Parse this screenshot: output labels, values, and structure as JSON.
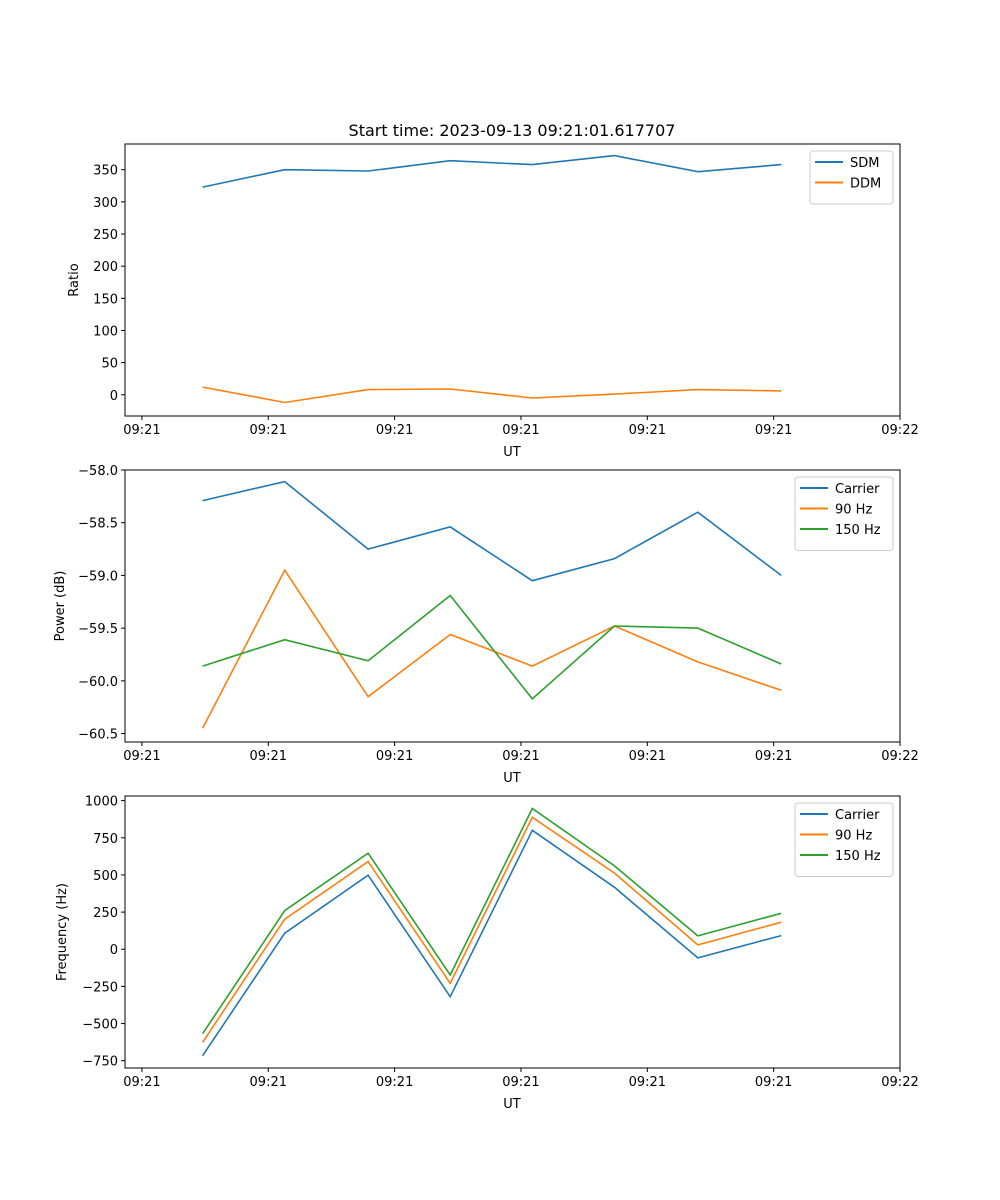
{
  "title": "Start time: 2023-09-13 09:21:01.617707",
  "chart_data": [
    {
      "type": "line",
      "title": "Start time: 2023-09-13 09:21:01.617707",
      "xlabel": "UT",
      "ylabel": "Ratio",
      "xlim": [
        -0.134,
        6
      ],
      "xticks": [
        0,
        1,
        2,
        3,
        4,
        5,
        6
      ],
      "xtick_labels": [
        "09:21",
        "09:21",
        "09:21",
        "09:21",
        "09:21",
        "09:21",
        "09:22"
      ],
      "ylim": [
        -33,
        390
      ],
      "yticks": [
        0,
        50,
        100,
        150,
        200,
        250,
        300,
        350
      ],
      "ytick_labels": [
        "0",
        "50",
        "100",
        "150",
        "200",
        "250",
        "300",
        "350"
      ],
      "legend": "top-right",
      "x": [
        0.48,
        1.13,
        1.79,
        2.44,
        3.09,
        3.74,
        4.4,
        5.06
      ],
      "series": [
        {
          "name": "SDM",
          "color": "#1f77b4",
          "values": [
            323,
            350,
            348,
            364,
            358,
            372,
            347,
            358
          ]
        },
        {
          "name": "DDM",
          "color": "#ff7f0e",
          "values": [
            12,
            -12,
            8,
            9,
            -5,
            1,
            8,
            6
          ]
        }
      ]
    },
    {
      "type": "line",
      "xlabel": "UT",
      "ylabel": "Power (dB)",
      "xlim": [
        -0.134,
        6
      ],
      "xticks": [
        0,
        1,
        2,
        3,
        4,
        5,
        6
      ],
      "xtick_labels": [
        "09:21",
        "09:21",
        "09:21",
        "09:21",
        "09:21",
        "09:21",
        "09:22"
      ],
      "ylim": [
        -60.58,
        -58.0
      ],
      "yticks": [
        -60.5,
        -60.0,
        -59.5,
        -59.0,
        -58.5,
        -58.0
      ],
      "ytick_labels": [
        "−60.5",
        "−60.0",
        "−59.5",
        "−59.0",
        "−58.5",
        "−58.0"
      ],
      "legend": "top-right",
      "x": [
        0.48,
        1.13,
        1.79,
        2.44,
        3.09,
        3.74,
        4.4,
        5.06
      ],
      "series": [
        {
          "name": "Carrier",
          "color": "#1f77b4",
          "values": [
            -58.29,
            -58.11,
            -58.75,
            -58.54,
            -59.05,
            -58.84,
            -58.4,
            -59.0
          ]
        },
        {
          "name": "90 Hz",
          "color": "#ff7f0e",
          "values": [
            -60.45,
            -58.95,
            -60.15,
            -59.56,
            -59.86,
            -59.48,
            -59.82,
            -60.09
          ]
        },
        {
          "name": "150 Hz",
          "color": "#2ca02c",
          "values": [
            -59.86,
            -59.61,
            -59.81,
            -59.19,
            -60.17,
            -59.48,
            -59.5,
            -59.84
          ]
        }
      ]
    },
    {
      "type": "line",
      "xlabel": "UT",
      "ylabel": "Frequency (Hz)",
      "xlim": [
        -0.134,
        6
      ],
      "xticks": [
        0,
        1,
        2,
        3,
        4,
        5,
        6
      ],
      "xtick_labels": [
        "09:21",
        "09:21",
        "09:21",
        "09:21",
        "09:21",
        "09:21",
        "09:22"
      ],
      "ylim": [
        -799,
        1031
      ],
      "yticks": [
        -750,
        -500,
        -250,
        0,
        250,
        500,
        750,
        1000
      ],
      "ytick_labels": [
        "−750",
        "−500",
        "−250",
        "0",
        "250",
        "500",
        "750",
        "1000"
      ],
      "legend": "top-right",
      "x": [
        0.48,
        1.13,
        1.79,
        2.44,
        3.09,
        3.74,
        4.4,
        5.06
      ],
      "series": [
        {
          "name": "Carrier",
          "color": "#1f77b4",
          "values": [
            -716,
            108,
            498,
            -319,
            800,
            417,
            -58,
            92
          ]
        },
        {
          "name": "90 Hz",
          "color": "#ff7f0e",
          "values": [
            -626,
            202,
            590,
            -229,
            888,
            512,
            29,
            182
          ]
        },
        {
          "name": "150 Hz",
          "color": "#2ca02c",
          "values": [
            -568,
            260,
            646,
            -173,
            947,
            561,
            90,
            242
          ]
        }
      ]
    }
  ]
}
